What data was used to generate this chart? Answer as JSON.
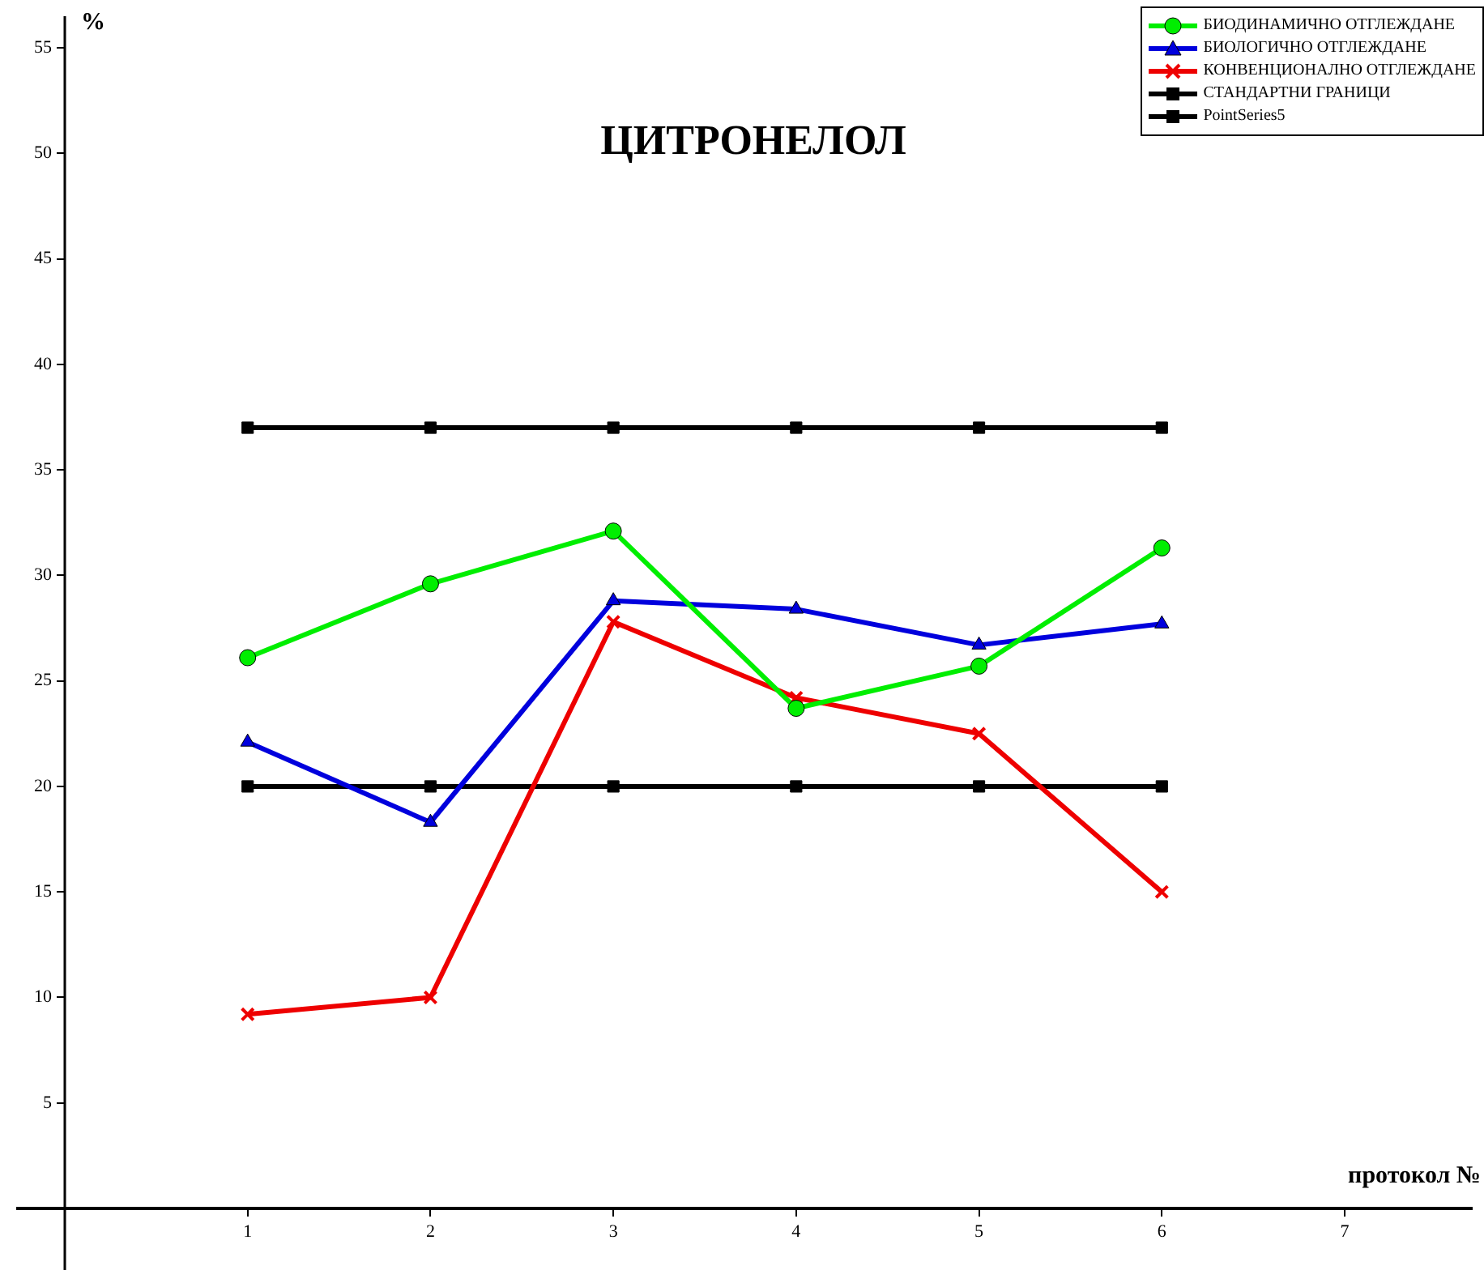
{
  "chart_data": {
    "type": "line",
    "title": "ЦИТРОНЕЛОЛ",
    "xlabel": "протокол №",
    "ylabel": "%",
    "x": [
      1,
      2,
      3,
      4,
      5,
      6
    ],
    "xlim": [
      0,
      7.7
    ],
    "xticks": [
      1,
      2,
      3,
      4,
      5,
      6,
      7
    ],
    "ylim": [
      0,
      56.5
    ],
    "yticks": [
      5,
      10,
      15,
      20,
      25,
      30,
      35,
      40,
      45,
      50,
      55
    ],
    "grid": false,
    "legend": "top right",
    "line_style": "solid",
    "series": [
      {
        "name": "БИОДИНАМИЧНО ОТГЛЕЖДАНЕ",
        "color": "#00ee00",
        "marker": "circle",
        "values": [
          26.1,
          29.6,
          32.1,
          23.7,
          25.7,
          31.3
        ]
      },
      {
        "name": "БИОЛОГИЧНО ОТГЛЕЖДАНЕ",
        "color": "#0000dd",
        "marker": "triangle",
        "values": [
          22.1,
          18.3,
          28.8,
          28.4,
          26.7,
          27.7
        ]
      },
      {
        "name": "КОНВЕНЦИОНАЛНО ОТГЛЕЖДАНЕ",
        "color": "#ee0000",
        "marker": "cross",
        "values": [
          9.2,
          10.0,
          27.8,
          24.2,
          22.5,
          15.0
        ]
      },
      {
        "name": "СТАНДАРТНИ ГРАНИЦИ",
        "color": "#000000",
        "marker": "square",
        "values": [
          37,
          37,
          37,
          37,
          37,
          37
        ]
      },
      {
        "name": "PointSeries5",
        "color": "#000000",
        "marker": "square",
        "values": [
          20,
          20,
          20,
          20,
          20,
          20
        ]
      }
    ]
  }
}
